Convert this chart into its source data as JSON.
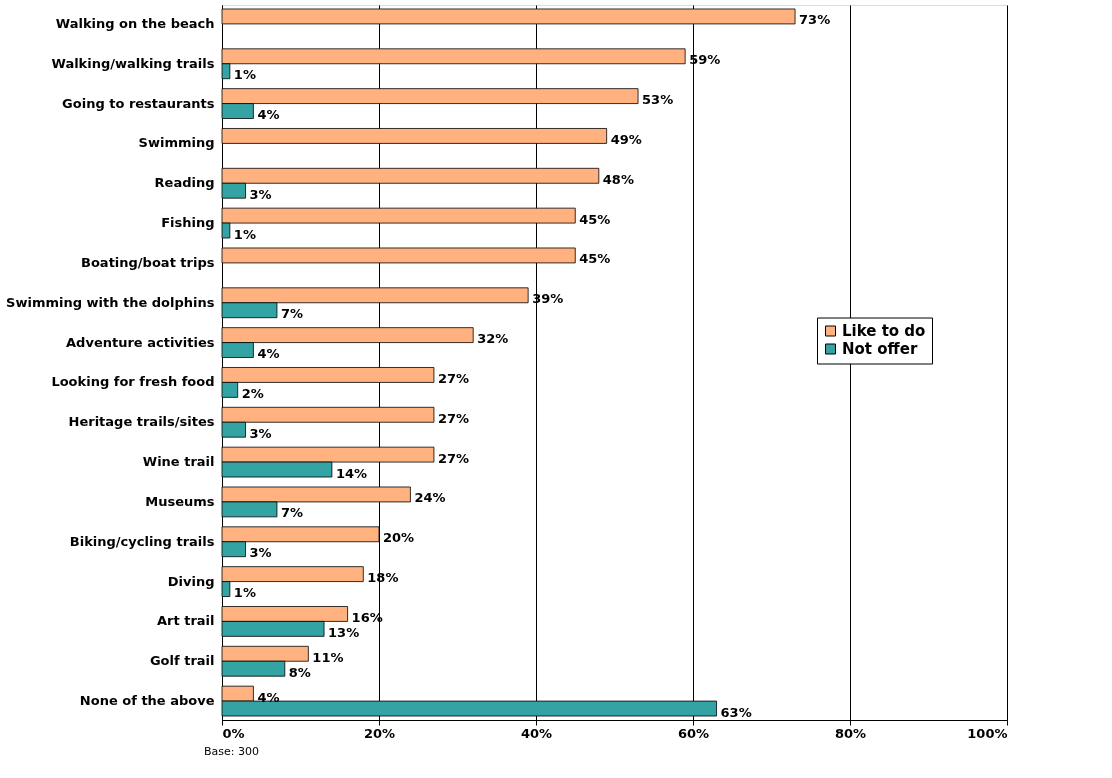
{
  "chart_data": {
    "type": "bar",
    "orientation": "horizontal",
    "categories": [
      "Walking on the beach",
      "Walking/walking trails",
      "Going to restaurants",
      "Swimming",
      "Reading",
      "Fishing",
      "Boating/boat trips",
      "Swimming with the dolphins",
      "Adventure activities",
      "Looking for fresh food",
      "Heritage trails/sites",
      "Wine trail",
      "Museums",
      "Biking/cycling trails",
      "Diving",
      "Art trail",
      "Golf trail",
      "None of the above"
    ],
    "series": [
      {
        "name": "Like to do",
        "color": "#ffb27f",
        "values": [
          73,
          59,
          53,
          49,
          48,
          45,
          45,
          39,
          32,
          27,
          27,
          27,
          24,
          20,
          18,
          16,
          11,
          4
        ],
        "value_labels": [
          "73%",
          "59%",
          "53%",
          "49%",
          "48%",
          "45%",
          "45%",
          "39%",
          "32%",
          "27%",
          "27%",
          "27%",
          "24%",
          "20%",
          "18%",
          "16%",
          "11%",
          "4%"
        ]
      },
      {
        "name": "Not offer",
        "color": "#33a3a3",
        "values": [
          null,
          1,
          4,
          null,
          3,
          1,
          null,
          7,
          4,
          2,
          3,
          14,
          7,
          3,
          1,
          13,
          8,
          63
        ],
        "value_labels": [
          null,
          "1%",
          "4%",
          null,
          "3%",
          "1%",
          null,
          "7%",
          "4%",
          "2%",
          "3%",
          "14%",
          "7%",
          "3%",
          "1%",
          "13%",
          "8%",
          "63%"
        ]
      }
    ],
    "xlim": [
      0,
      100
    ],
    "xticks": [
      {
        "value": 0,
        "label": "0%"
      },
      {
        "value": 20,
        "label": "20%"
      },
      {
        "value": 40,
        "label": "40%"
      },
      {
        "value": 60,
        "label": "60%"
      },
      {
        "value": 80,
        "label": "80%"
      },
      {
        "value": 100,
        "label": "100%"
      }
    ],
    "grid": "x",
    "legend": "right",
    "annotations": [
      "Base: 300"
    ]
  }
}
